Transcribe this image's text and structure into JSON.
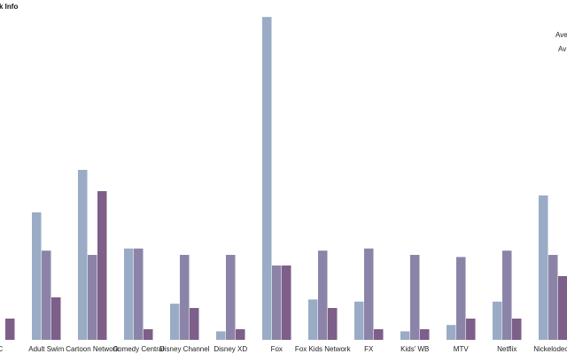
{
  "chart_data": {
    "type": "bar",
    "title": "k Info",
    "legend_fragments": [
      "Ave",
      "Av"
    ],
    "categories": [
      "C",
      "Adult Swim",
      "Cartoon Network",
      "Comedy Central",
      "Disney Channel",
      "Disney XD",
      "Fox",
      "Fox Kids Network",
      "FX",
      "Kids' WB",
      "MTV",
      "Netflix",
      "Nickelodeon"
    ],
    "series": [
      {
        "values": [
          0,
          30,
          40,
          21.5,
          8.5,
          2,
          76,
          9.5,
          9,
          2,
          3.5,
          9,
          34
        ]
      },
      {
        "values": [
          0,
          21,
          20,
          21.5,
          20,
          20,
          17.5,
          21,
          21.5,
          20,
          19.5,
          21,
          20
        ]
      },
      {
        "values": [
          5,
          10,
          35,
          2.5,
          7.5,
          2.5,
          17.5,
          7.5,
          2.5,
          2.5,
          5,
          5,
          15
        ]
      }
    ],
    "colors": [
      "#9aabc6",
      "#8c84a8",
      "#7d5f8a"
    ],
    "ylim": [
      0,
      80
    ],
    "grid": false
  }
}
